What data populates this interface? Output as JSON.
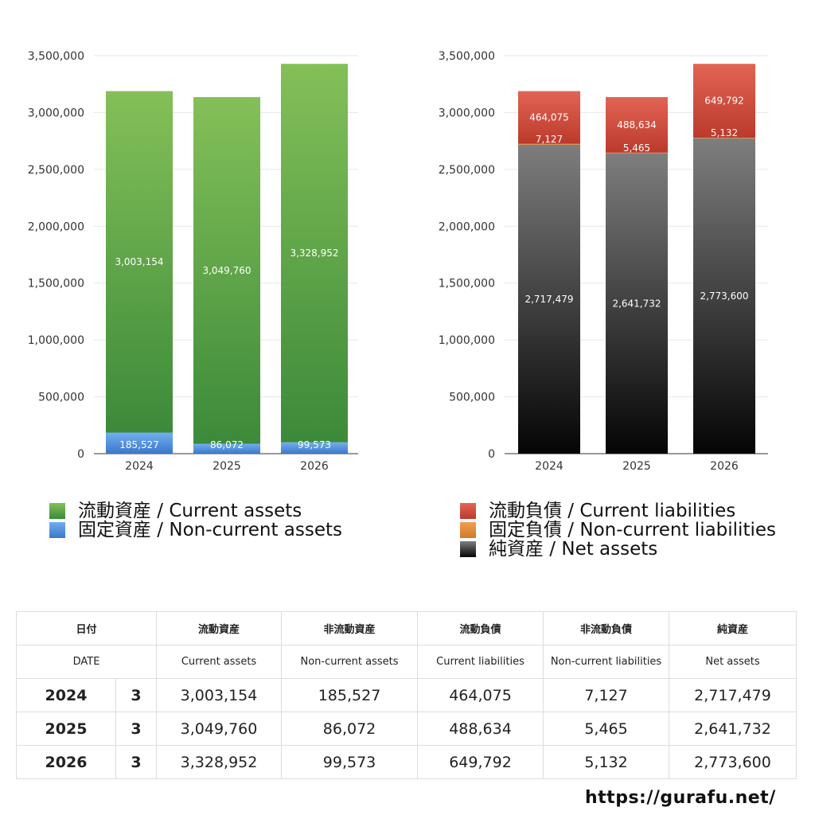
{
  "chart_data": [
    {
      "type": "bar",
      "stacked": true,
      "categories": [
        "2024",
        "2025",
        "2026"
      ],
      "ylim": [
        0,
        3500000
      ],
      "yticks": [
        0,
        500000,
        1000000,
        1500000,
        2000000,
        2500000,
        3000000,
        3500000
      ],
      "ytick_labels": [
        "0",
        "500,000",
        "1,000,000",
        "1,500,000",
        "2,000,000",
        "2,500,000",
        "3,000,000",
        "3,500,000"
      ],
      "grid": true,
      "legend_position": "bottom",
      "series": [
        {
          "name": "固定資産 / Non-current assets",
          "color": "#4a8be0",
          "values": [
            185527,
            86072,
            99573
          ],
          "labels": [
            "185,527",
            "86,072",
            "99,573"
          ]
        },
        {
          "name": "流動資産 / Current assets",
          "color": "#4fa044",
          "values": [
            3003154,
            3049760,
            3328952
          ],
          "labels": [
            "3,003,154",
            "3,049,760",
            "3,328,952"
          ]
        }
      ],
      "legend": [
        "流動資産 / Current assets",
        "固定資産 / Non-current assets"
      ],
      "legend_colors": [
        "#4fa044",
        "#4a8be0"
      ]
    },
    {
      "type": "bar",
      "stacked": true,
      "categories": [
        "2024",
        "2025",
        "2026"
      ],
      "ylim": [
        0,
        3500000
      ],
      "yticks": [
        0,
        500000,
        1000000,
        1500000,
        2000000,
        2500000,
        3000000,
        3500000
      ],
      "ytick_labels": [
        "0",
        "500,000",
        "1,000,000",
        "1,500,000",
        "2,000,000",
        "2,500,000",
        "3,000,000",
        "3,500,000"
      ],
      "grid": true,
      "legend_position": "bottom",
      "series": [
        {
          "name": "純資産 / Net assets",
          "color": "#3a3a3a",
          "values": [
            2717479,
            2641732,
            2773600
          ],
          "labels": [
            "2,717,479",
            "2,641,732",
            "2,773,600"
          ]
        },
        {
          "name": "固定負債 / Non-current liabilities",
          "color": "#e08a3a",
          "values": [
            7127,
            5465,
            5132
          ],
          "labels": [
            "7,127",
            "5,465",
            "5,132"
          ]
        },
        {
          "name": "流動負債 / Current liabilities",
          "color": "#d14a3a",
          "values": [
            464075,
            488634,
            649792
          ],
          "labels": [
            "464,075",
            "488,634",
            "649,792"
          ]
        }
      ],
      "legend": [
        "流動負債 / Current liabilities",
        "固定負債 / Non-current liabilities",
        "純資産 / Net assets"
      ],
      "legend_colors": [
        "#d14a3a",
        "#e08a3a",
        "#333333"
      ]
    }
  ],
  "table": {
    "header_jp": [
      "日付",
      "流動資産",
      "非流動資産",
      "流動負債",
      "非流動負債",
      "純資産"
    ],
    "header_en": [
      "DATE",
      "Current assets",
      "Non-current assets",
      "Current liabilities",
      "Non-current liabilities",
      "Net assets"
    ],
    "rows": [
      {
        "year": "2024",
        "month": "3",
        "values": [
          "3,003,154",
          "185,527",
          "464,075",
          "7,127",
          "2,717,479"
        ]
      },
      {
        "year": "2025",
        "month": "3",
        "values": [
          "3,049,760",
          "86,072",
          "488,634",
          "5,465",
          "2,641,732"
        ]
      },
      {
        "year": "2026",
        "month": "3",
        "values": [
          "3,328,952",
          "99,573",
          "649,792",
          "5,132",
          "2,773,600"
        ]
      }
    ]
  },
  "footer": {
    "url": "https://gurafu.net/"
  }
}
